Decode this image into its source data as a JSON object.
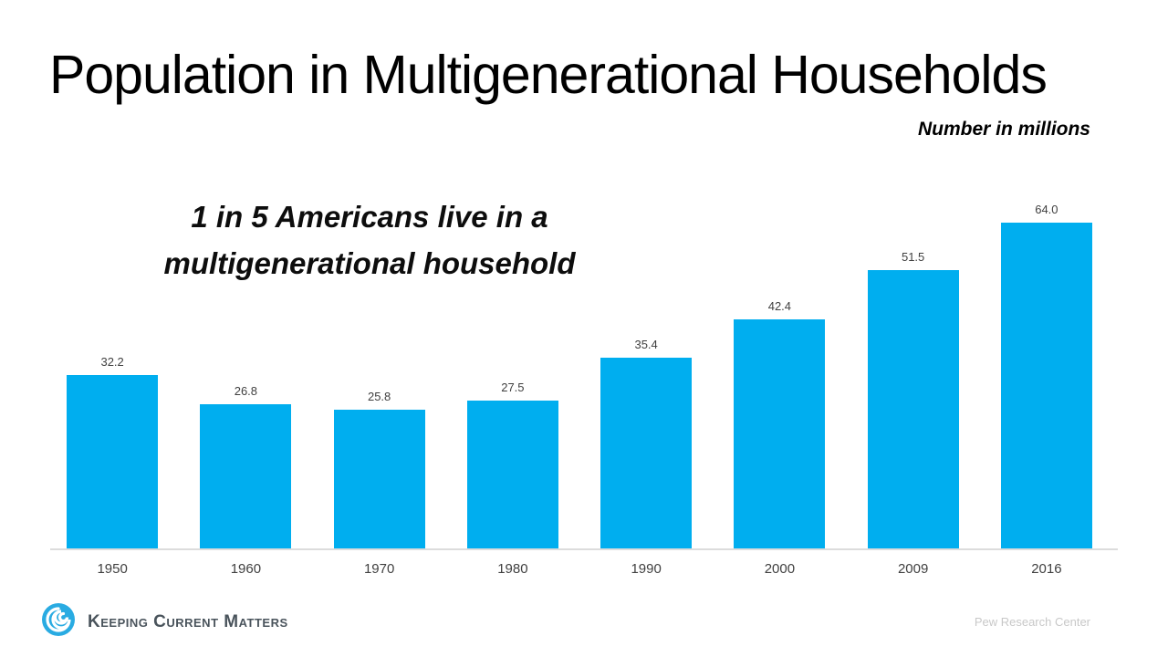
{
  "slide": {
    "title": "Population in Multigenerational Households",
    "subtitle": "Number in millions",
    "annotation": {
      "line1": "1 in 5 Americans live in a",
      "line2": "multigenerational household"
    },
    "footer": {
      "brand": "Keeping Current Matters",
      "logo_icon": "swirl-icon",
      "source": "Pew Research Center"
    }
  },
  "colors": {
    "bar": "#00AEEF",
    "axis_line": "#DCDCDC",
    "data_label": "#404040",
    "brand_text": "#4A545C",
    "logo_blue": "#29ABE2",
    "source_text": "#C8C8C8"
  },
  "chart_data": {
    "type": "bar",
    "title": "Population in Multigenerational Households",
    "subtitle": "Number in millions",
    "categories": [
      "1950",
      "1960",
      "1970",
      "1980",
      "1990",
      "2000",
      "2009",
      "2016"
    ],
    "values": [
      32.2,
      26.8,
      25.8,
      27.5,
      35.4,
      42.4,
      51.5,
      64.0
    ],
    "value_labels": [
      "32.2",
      "26.8",
      "25.8",
      "27.5",
      "35.4",
      "42.4",
      "51.5",
      "64.0"
    ],
    "xlabel": "",
    "ylabel": "Number in millions",
    "ylim": [
      0,
      64
    ],
    "grid": false,
    "legend": false,
    "bar_color": "#00AEEF",
    "annotation": "1 in 5 Americans live in a multigenerational household",
    "source": "Pew Research Center"
  }
}
